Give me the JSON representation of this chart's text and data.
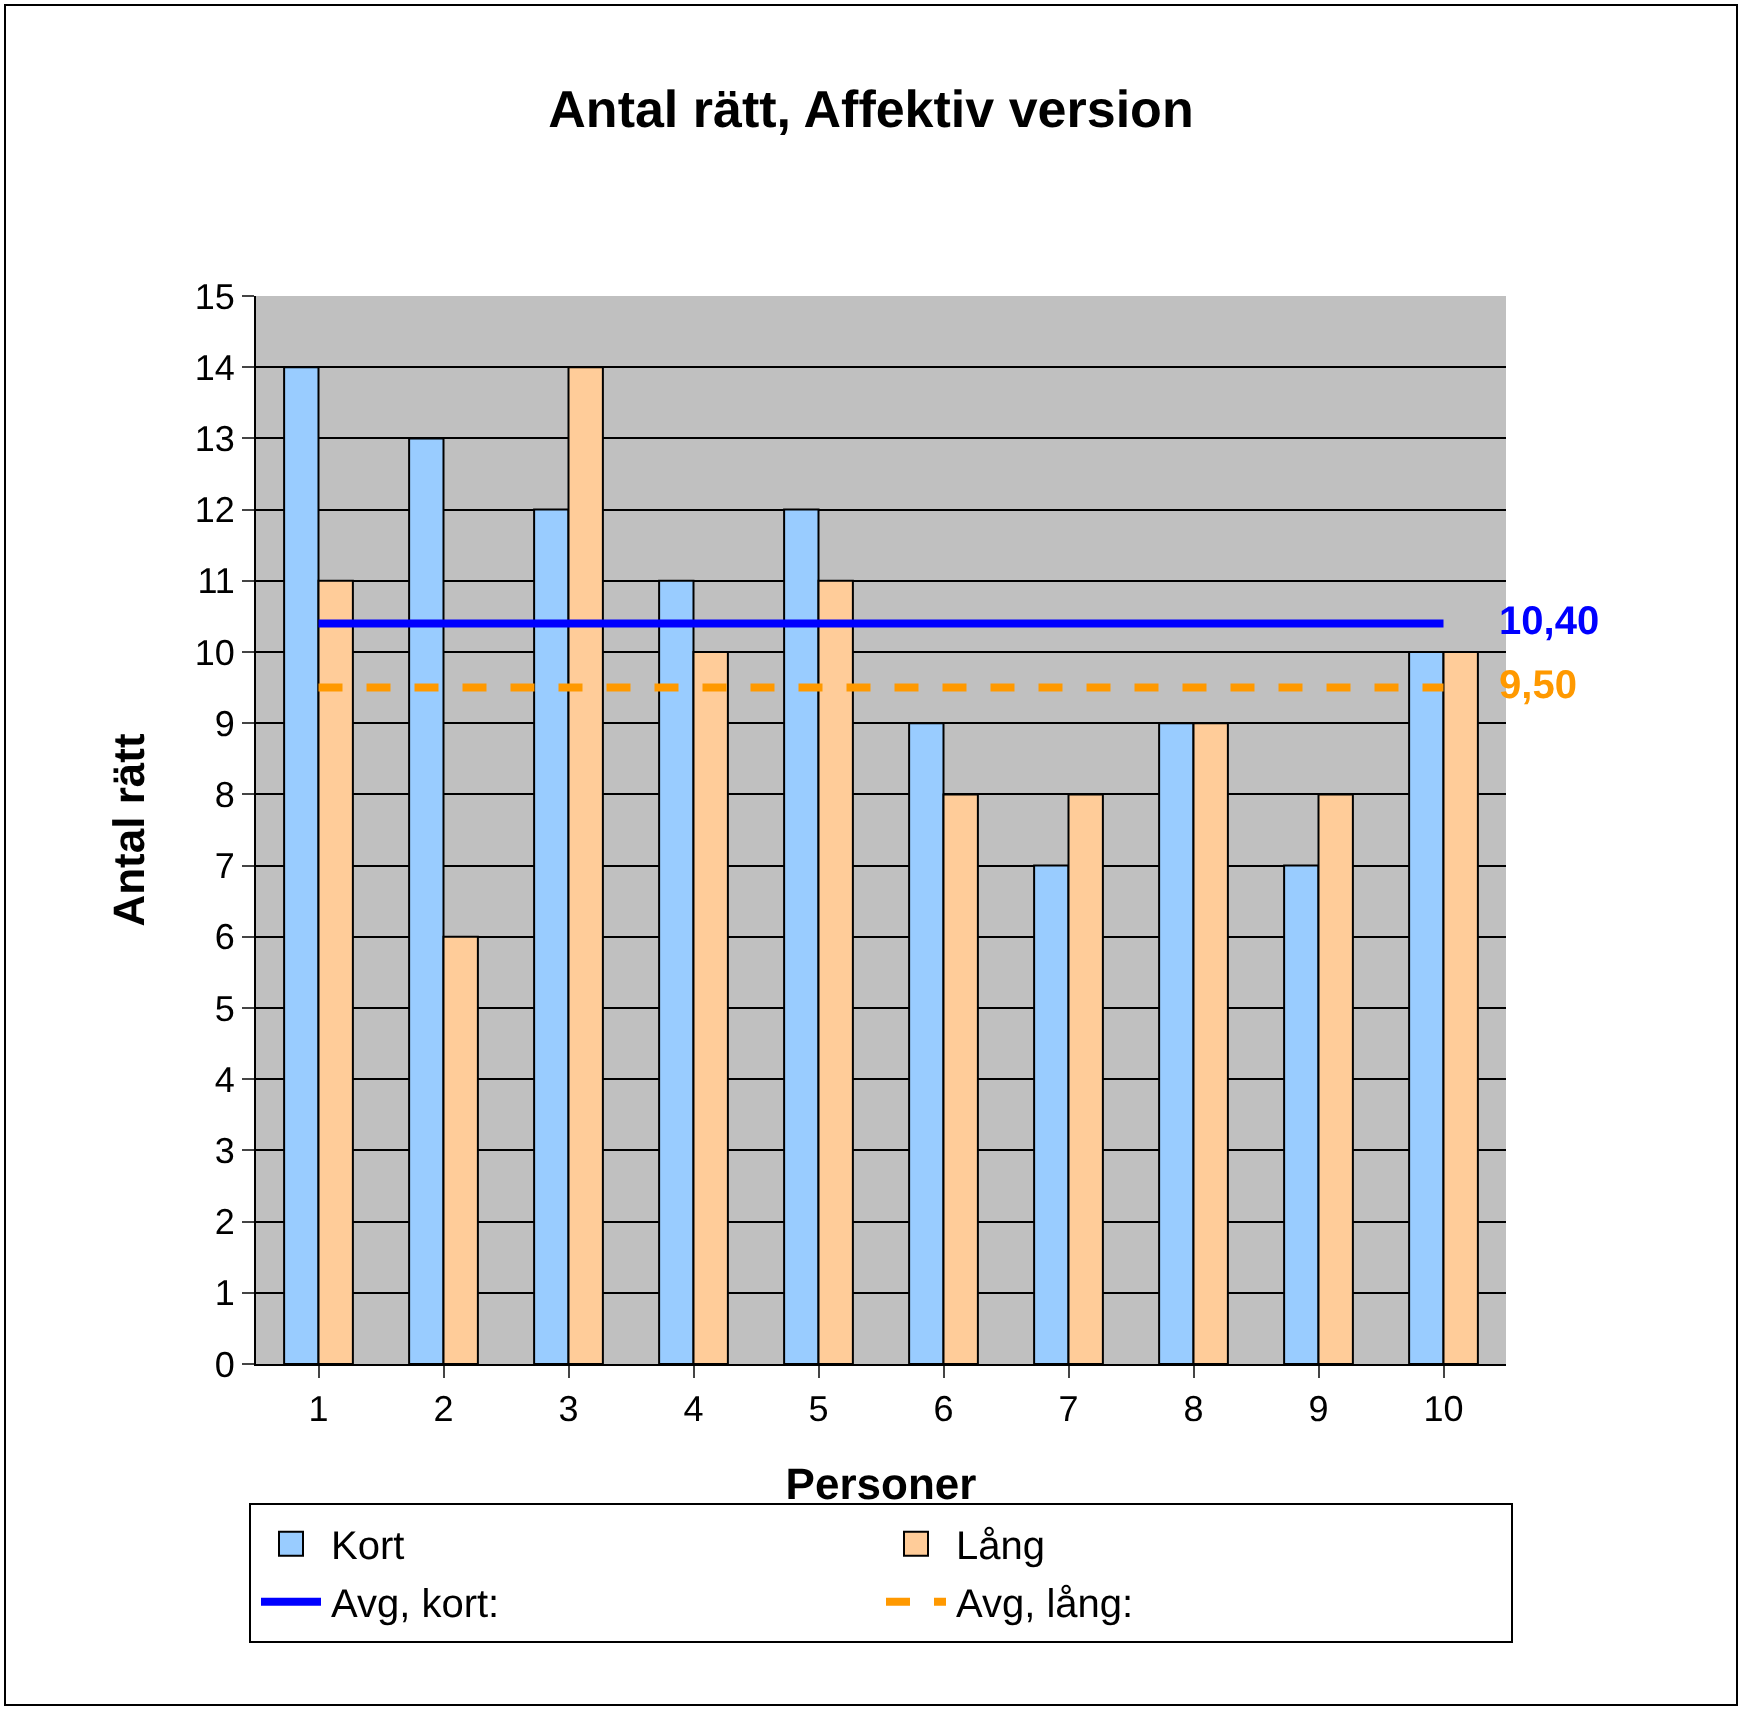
{
  "chart_data": {
    "type": "bar",
    "title": "Antal rätt, Affektiv version",
    "xlabel": "Personer",
    "ylabel": "Antal rätt",
    "categories": [
      "1",
      "2",
      "3",
      "4",
      "5",
      "6",
      "7",
      "8",
      "9",
      "10"
    ],
    "series": [
      {
        "name": "Kort",
        "color": "#99ccff",
        "values": [
          14,
          13,
          12,
          11,
          12,
          9,
          7,
          9,
          7,
          10
        ]
      },
      {
        "name": "Lång",
        "color": "#ffcc99",
        "values": [
          11,
          6,
          14,
          10,
          11,
          8,
          8,
          9,
          8,
          10
        ]
      },
      {
        "name": "Avg, kort:",
        "type": "line",
        "color": "#0000ff",
        "line_style": "solid",
        "values": [
          10.4,
          10.4,
          10.4,
          10.4,
          10.4,
          10.4,
          10.4,
          10.4,
          10.4,
          10.4
        ],
        "value_labels": [
          null,
          null,
          null,
          null,
          null,
          null,
          null,
          null,
          null,
          "10,40"
        ]
      },
      {
        "name": "Avg, lång:",
        "type": "line",
        "color": "#ff9900",
        "line_style": "dashed",
        "values": [
          9.5,
          9.5,
          9.5,
          9.5,
          9.5,
          9.5,
          9.5,
          9.5,
          9.5,
          9.5
        ],
        "value_labels": [
          null,
          null,
          null,
          null,
          null,
          null,
          null,
          null,
          null,
          "9,50"
        ]
      }
    ],
    "ylim": [
      0,
      15
    ],
    "yticks": [
      0,
      1,
      2,
      3,
      4,
      5,
      6,
      7,
      8,
      9,
      10,
      11,
      12,
      13,
      14,
      15
    ],
    "grid": "y",
    "legend": "bottom",
    "marker": "none"
  }
}
